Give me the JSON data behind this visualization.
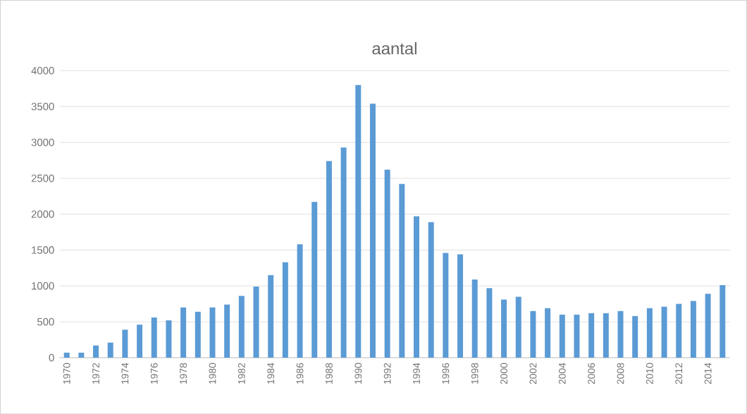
{
  "chart_data": {
    "type": "bar",
    "title": "aantal",
    "categories": [
      "1970",
      null,
      "1972",
      null,
      "1974",
      null,
      "1976",
      null,
      "1978",
      null,
      "1980",
      null,
      "1982",
      null,
      "1984",
      null,
      "1986",
      null,
      "1988",
      null,
      "1990",
      null,
      "1992",
      null,
      "1994",
      null,
      "1996",
      null,
      "1998",
      null,
      "2000",
      null,
      "2002",
      null,
      "2004",
      null,
      "2006",
      null,
      "2008",
      null,
      "2010",
      null,
      "2012",
      null,
      "2014",
      null
    ],
    "values": [
      70,
      70,
      170,
      210,
      390,
      460,
      560,
      520,
      700,
      640,
      700,
      740,
      860,
      990,
      1150,
      1330,
      1580,
      2170,
      2740,
      2930,
      3800,
      3540,
      2620,
      2420,
      1970,
      1890,
      1460,
      1440,
      1090,
      970,
      810,
      850,
      650,
      690,
      600,
      600,
      620,
      620,
      650,
      580,
      690,
      710,
      750,
      790,
      890,
      1010
    ],
    "color": "#5b9bd5",
    "ylim": [
      0,
      4000
    ],
    "yticks": [
      0,
      500,
      1000,
      1500,
      2000,
      2500,
      3000,
      3500,
      4000
    ],
    "grid": "y"
  }
}
